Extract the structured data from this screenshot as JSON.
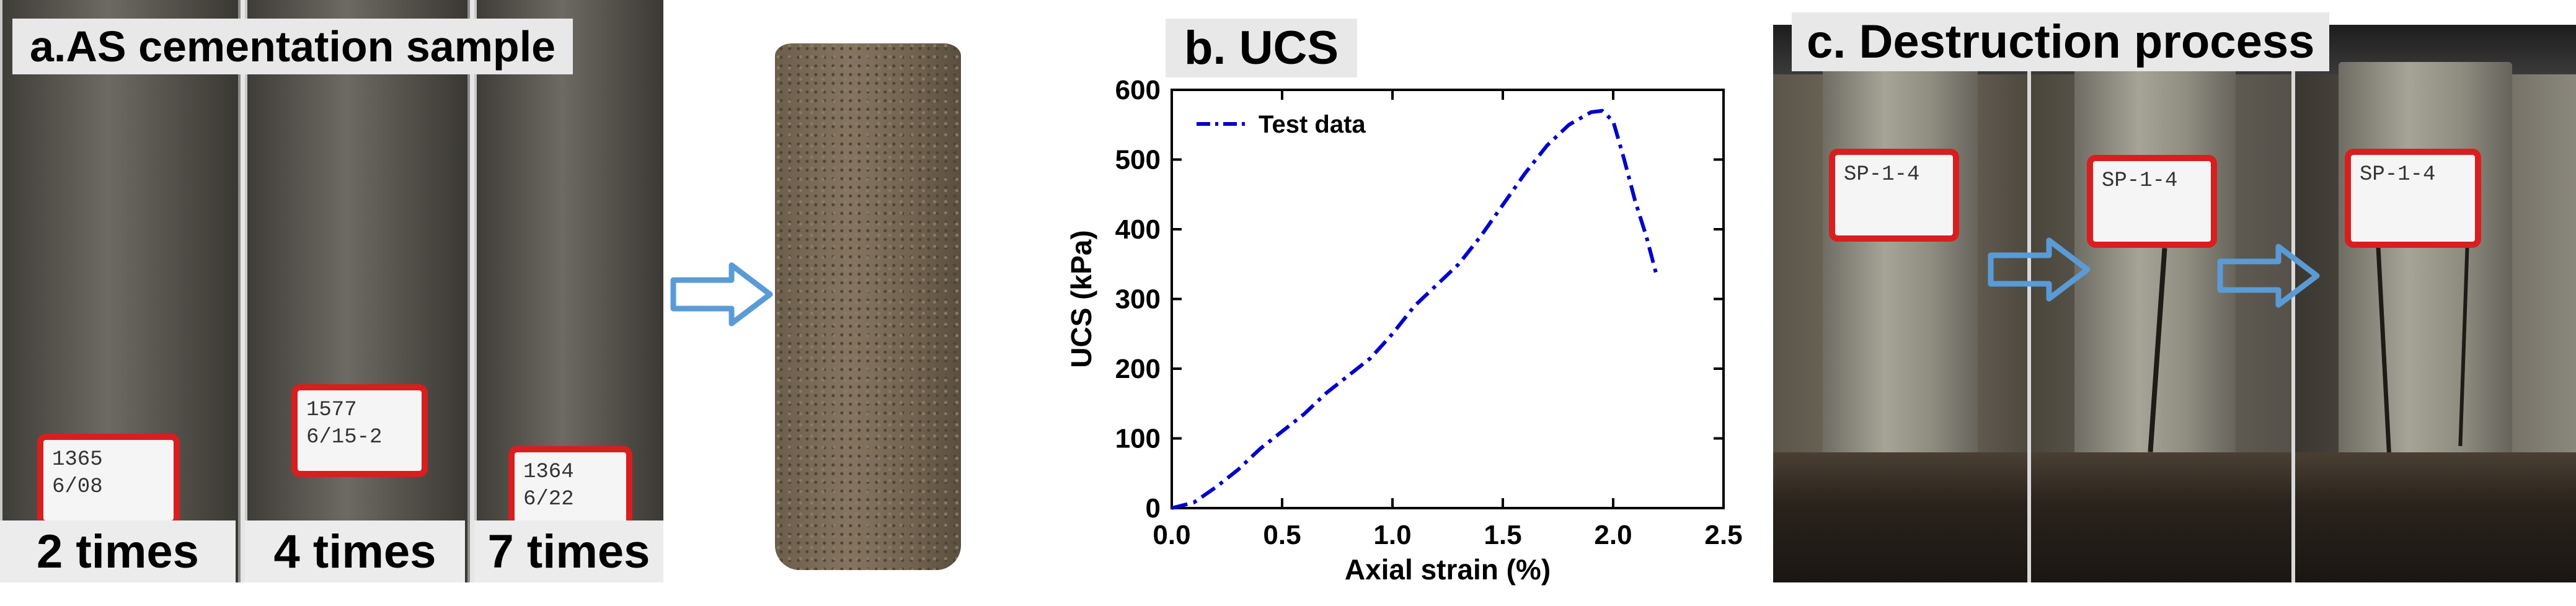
{
  "panel_a": {
    "title": "a.AS cementation sample",
    "tubes": [
      {
        "caption": "2 times",
        "label_line1": "1365",
        "label_line2": "6/08"
      },
      {
        "caption": "4 times",
        "label_line1": "1577",
        "label_line2": "6/15-2"
      },
      {
        "caption": "7 times",
        "label_line1": "1364",
        "label_line2": "6/22"
      }
    ]
  },
  "panel_b": {
    "title": "b. UCS"
  },
  "panel_c": {
    "title": "c. Destruction process",
    "label_text": "SP-1-4"
  },
  "colors": {
    "arrow": "#5b9bd5",
    "label_border": "#d81e1e",
    "curve": "#0000cc",
    "title_bg": "#e8e8e8"
  },
  "chart_data": {
    "type": "line",
    "title": "",
    "xlabel": "Axial strain (%)",
    "ylabel": "UCS (kPa)",
    "xlim": [
      0.0,
      2.5
    ],
    "ylim": [
      0,
      600
    ],
    "xticks": [
      "0.0",
      "0.5",
      "1.0",
      "1.5",
      "2.0",
      "2.5"
    ],
    "yticks": [
      "0",
      "100",
      "200",
      "300",
      "400",
      "500",
      "600"
    ],
    "legend_position": "top-left",
    "series": [
      {
        "name": "Test data",
        "style": "dash-dot",
        "color": "#0000cc",
        "x": [
          0.0,
          0.1,
          0.2,
          0.3,
          0.4,
          0.5,
          0.6,
          0.7,
          0.8,
          0.9,
          1.0,
          1.1,
          1.2,
          1.3,
          1.4,
          1.5,
          1.6,
          1.7,
          1.8,
          1.9,
          1.95,
          2.0,
          2.05,
          2.1,
          2.15,
          2.2
        ],
        "y": [
          0,
          8,
          30,
          55,
          85,
          110,
          135,
          165,
          190,
          215,
          250,
          290,
          320,
          350,
          390,
          435,
          480,
          520,
          550,
          568,
          570,
          555,
          500,
          440,
          390,
          330
        ]
      }
    ]
  }
}
